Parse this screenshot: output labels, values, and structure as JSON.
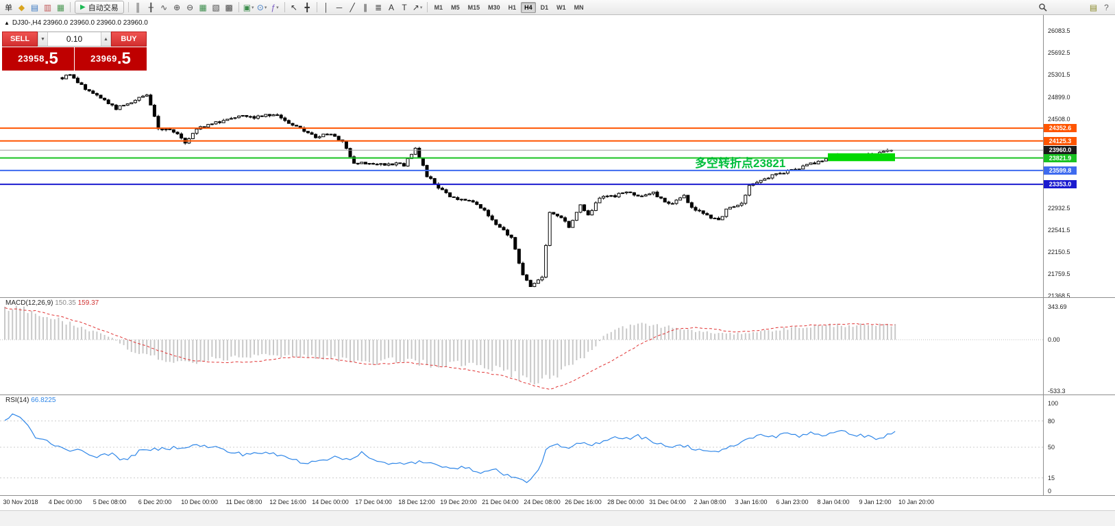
{
  "toolbar": {
    "new_order": {
      "name": "new-order-button",
      "label": "单"
    },
    "left_icons": [
      {
        "name": "history-center-icon",
        "glyph": "◆",
        "color": "#D9A41E"
      },
      {
        "name": "market-watch-icon",
        "glyph": "▤",
        "color": "#3E7BC4"
      },
      {
        "name": "data-window-icon",
        "glyph": "▥",
        "color": "#C25B5B"
      },
      {
        "name": "navigator-icon",
        "glyph": "▦",
        "color": "#4E9A57"
      }
    ],
    "autotrade": {
      "name": "autotrade-button",
      "label": "自动交易"
    },
    "chart_icons": [
      {
        "name": "bar-chart-icon",
        "glyph": "║",
        "color": "#4a4a4a"
      },
      {
        "name": "candlestick-icon",
        "glyph": "╂",
        "color": "#4a4a4a"
      },
      {
        "name": "line-chart-icon",
        "glyph": "∿",
        "color": "#4a4a4a"
      },
      {
        "name": "zoom-in-icon",
        "glyph": "⊕",
        "color": "#4a4a4a"
      },
      {
        "name": "zoom-out-icon",
        "glyph": "⊖",
        "color": "#4a4a4a"
      },
      {
        "name": "grid-icon",
        "glyph": "▦",
        "color": "#3E8E4E"
      },
      {
        "name": "cascade-windows-icon",
        "glyph": "▧",
        "color": "#4a4a4a"
      },
      {
        "name": "tile-windows-icon",
        "glyph": "▩",
        "color": "#4a4a4a"
      }
    ],
    "dropdown_icons": [
      {
        "name": "new-chart-button",
        "glyph": "▣",
        "color": "#3E8E4E",
        "caret": true
      },
      {
        "name": "periods-button",
        "glyph": "⊙",
        "color": "#3E7BC4",
        "caret": true
      },
      {
        "name": "indicators-button",
        "glyph": "ƒ",
        "color": "#7A5CC4",
        "caret": true
      }
    ],
    "cursor_icons": [
      {
        "name": "cursor-icon",
        "glyph": "↖",
        "color": "#333333"
      },
      {
        "name": "crosshair-icon",
        "glyph": "╋",
        "color": "#333333"
      }
    ],
    "draw_icons": [
      {
        "name": "vertical-line-tool",
        "glyph": "│",
        "color": "#333333"
      },
      {
        "name": "horizontal-line-tool",
        "glyph": "─",
        "color": "#333333"
      },
      {
        "name": "trendline-tool",
        "glyph": "╱",
        "color": "#333333"
      },
      {
        "name": "channel-tool",
        "glyph": "∥",
        "color": "#333333"
      },
      {
        "name": "fibonacci-tool",
        "glyph": "≣",
        "color": "#333333"
      },
      {
        "name": "text-tool",
        "glyph": "A",
        "color": "#333333"
      },
      {
        "name": "label-tool",
        "glyph": "T",
        "color": "#333333"
      },
      {
        "name": "arrows-tool",
        "glyph": "↗",
        "color": "#333333",
        "caret": true
      }
    ],
    "timeframes": [
      "M1",
      "M5",
      "M15",
      "M30",
      "H1",
      "H4",
      "D1",
      "W1",
      "MN"
    ],
    "active_timeframe": "H4",
    "right_icons": [
      {
        "name": "search-icon",
        "type": "magnifier"
      },
      {
        "name": "window-list-icon",
        "glyph": "▤",
        "color": "#8a8a2a"
      },
      {
        "name": "help-icon",
        "glyph": "?",
        "color": "#666666"
      }
    ]
  },
  "chart": {
    "title": "DJ30-,H4 23960.0 23960.0 23960.0 23960.0",
    "one_click": {
      "sell_label": "SELL",
      "buy_label": "BUY",
      "lot_value": "0.10",
      "sell_price_main": "23958",
      "sell_price_frac": ".5",
      "buy_price_main": "23969",
      "buy_price_frac": ".5"
    },
    "annotation": {
      "text": "多空转折点23821",
      "color": "#00BE3C"
    },
    "levels": [
      {
        "price": 24352.6,
        "label": "24352.6",
        "color": "#FF5500",
        "width": 2
      },
      {
        "price": 24125.3,
        "label": "24125.3",
        "color": "#FF5500",
        "width": 2
      },
      {
        "price": 23960.0,
        "label": "23960.0",
        "color": "#999999",
        "width": 1,
        "style": "current"
      },
      {
        "price": 23821.9,
        "label": "23821.9",
        "color": "#19C322",
        "width": 2
      },
      {
        "price": 23599.8,
        "label": "23599.8",
        "color": "#3E6BEF",
        "width": 2
      },
      {
        "price": 23353.0,
        "label": "23353.0",
        "color": "#1A1ACF",
        "width": 2
      }
    ],
    "price_axis_ticks": [
      "26083.5",
      "25692.5",
      "25301.5",
      "24899.0",
      "24508.0",
      "22932.5",
      "22541.5",
      "22150.5",
      "21759.5",
      "21368.5"
    ],
    "highlight_rect": {
      "color": "#00D800",
      "j_start": 215,
      "j_end": 232.5,
      "price_top": 23905,
      "price_bottom": 23765
    }
  },
  "chart_data": {
    "type": "candlestick",
    "symbol": "DJ30-",
    "period": "H4",
    "ohlc_current": {
      "open": "23960.0",
      "high": "23960.0",
      "low": "23960.0",
      "close": "23960.0"
    },
    "close_anchors": [
      [
        15,
        25250
      ],
      [
        17,
        25290
      ],
      [
        22,
        25000
      ],
      [
        26,
        24850
      ],
      [
        29,
        24700
      ],
      [
        34,
        24850
      ],
      [
        37,
        24950
      ],
      [
        40,
        24350
      ],
      [
        44,
        24300
      ],
      [
        47,
        24100
      ],
      [
        50,
        24350
      ],
      [
        55,
        24450
      ],
      [
        58,
        24520
      ],
      [
        62,
        24600
      ],
      [
        65,
        24550
      ],
      [
        70,
        24600
      ],
      [
        74,
        24450
      ],
      [
        78,
        24300
      ],
      [
        81,
        24200
      ],
      [
        85,
        24250
      ],
      [
        88,
        24100
      ],
      [
        91,
        23750
      ],
      [
        96,
        23700
      ],
      [
        100,
        23720
      ],
      [
        104,
        23700
      ],
      [
        107,
        24000
      ],
      [
        110,
        23500
      ],
      [
        113,
        23300
      ],
      [
        117,
        23100
      ],
      [
        121,
        23050
      ],
      [
        125,
        22900
      ],
      [
        128,
        22650
      ],
      [
        132,
        22400
      ],
      [
        135,
        21750
      ],
      [
        137,
        21550
      ],
      [
        140,
        21700
      ],
      [
        142,
        22850
      ],
      [
        145,
        22750
      ],
      [
        147,
        22600
      ],
      [
        150,
        23000
      ],
      [
        152,
        22800
      ],
      [
        155,
        23100
      ],
      [
        159,
        23150
      ],
      [
        162,
        23200
      ],
      [
        166,
        23150
      ],
      [
        169,
        23200
      ],
      [
        173,
        23000
      ],
      [
        177,
        23150
      ],
      [
        179,
        22950
      ],
      [
        183,
        22800
      ],
      [
        186,
        22700
      ],
      [
        188,
        22900
      ],
      [
        192,
        23000
      ],
      [
        194,
        23350
      ],
      [
        198,
        23450
      ],
      [
        202,
        23550
      ],
      [
        205,
        23600
      ],
      [
        209,
        23700
      ],
      [
        212,
        23750
      ],
      [
        216,
        23850
      ],
      [
        219,
        23880
      ],
      [
        223,
        23850
      ],
      [
        227,
        23880
      ],
      [
        231,
        23960
      ]
    ],
    "macd": {
      "label": "MACD(12,26,9)",
      "value_main": "150.35",
      "value_signal": "159.37",
      "ticks": [
        "343.69",
        "0.00",
        "-533.3"
      ],
      "hist_anchors": [
        [
          0,
          340
        ],
        [
          5,
          310
        ],
        [
          12,
          230
        ],
        [
          20,
          130
        ],
        [
          28,
          20
        ],
        [
          33,
          -120
        ],
        [
          40,
          -200
        ],
        [
          48,
          -260
        ],
        [
          55,
          -200
        ],
        [
          65,
          -180
        ],
        [
          75,
          -160
        ],
        [
          85,
          -200
        ],
        [
          95,
          -240
        ],
        [
          105,
          -200
        ],
        [
          110,
          -260
        ],
        [
          120,
          -240
        ],
        [
          127,
          -300
        ],
        [
          133,
          -380
        ],
        [
          138,
          -460
        ],
        [
          142,
          -400
        ],
        [
          148,
          -250
        ],
        [
          153,
          -120
        ],
        [
          156,
          40
        ],
        [
          160,
          120
        ],
        [
          165,
          160
        ],
        [
          170,
          150
        ],
        [
          175,
          120
        ],
        [
          180,
          90
        ],
        [
          185,
          70
        ],
        [
          190,
          60
        ],
        [
          195,
          80
        ],
        [
          200,
          100
        ],
        [
          205,
          120
        ],
        [
          210,
          140
        ],
        [
          215,
          150
        ],
        [
          220,
          155
        ],
        [
          225,
          145
        ],
        [
          232,
          150
        ]
      ],
      "signal_anchors": [
        [
          0,
          330
        ],
        [
          8,
          300
        ],
        [
          15,
          240
        ],
        [
          22,
          150
        ],
        [
          28,
          60
        ],
        [
          35,
          -40
        ],
        [
          42,
          -140
        ],
        [
          48,
          -210
        ],
        [
          55,
          -240
        ],
        [
          65,
          -230
        ],
        [
          75,
          -180
        ],
        [
          85,
          -200
        ],
        [
          95,
          -260
        ],
        [
          105,
          -240
        ],
        [
          110,
          -260
        ],
        [
          120,
          -310
        ],
        [
          130,
          -380
        ],
        [
          138,
          -480
        ],
        [
          142,
          -520
        ],
        [
          147,
          -450
        ],
        [
          153,
          -330
        ],
        [
          160,
          -180
        ],
        [
          165,
          -60
        ],
        [
          170,
          40
        ],
        [
          175,
          110
        ],
        [
          180,
          130
        ],
        [
          185,
          110
        ],
        [
          190,
          80
        ],
        [
          195,
          90
        ],
        [
          200,
          120
        ],
        [
          205,
          140
        ],
        [
          210,
          150
        ],
        [
          216,
          160
        ],
        [
          222,
          165
        ],
        [
          228,
          158
        ],
        [
          232,
          155
        ]
      ]
    },
    "rsi": {
      "label": "RSI(14)",
      "value": "66.8225",
      "ticks": [
        "100",
        "80",
        "50",
        "15",
        "0"
      ],
      "anchors": [
        [
          0,
          80
        ],
        [
          2,
          88
        ],
        [
          5,
          80
        ],
        [
          8,
          62
        ],
        [
          12,
          55
        ],
        [
          16,
          48
        ],
        [
          20,
          45
        ],
        [
          24,
          40
        ],
        [
          28,
          42
        ],
        [
          31,
          35
        ],
        [
          35,
          45
        ],
        [
          40,
          48
        ],
        [
          45,
          50
        ],
        [
          50,
          52
        ],
        [
          55,
          50
        ],
        [
          58,
          45
        ],
        [
          62,
          42
        ],
        [
          66,
          44
        ],
        [
          70,
          42
        ],
        [
          74,
          38
        ],
        [
          78,
          32
        ],
        [
          82,
          36
        ],
        [
          86,
          38
        ],
        [
          90,
          36
        ],
        [
          93,
          45
        ],
        [
          96,
          35
        ],
        [
          100,
          30
        ],
        [
          104,
          32
        ],
        [
          108,
          33
        ],
        [
          112,
          30
        ],
        [
          116,
          28
        ],
        [
          120,
          26
        ],
        [
          124,
          22
        ],
        [
          128,
          24
        ],
        [
          131,
          18
        ],
        [
          134,
          13
        ],
        [
          136,
          11
        ],
        [
          139,
          22
        ],
        [
          141,
          48
        ],
        [
          144,
          52
        ],
        [
          147,
          48
        ],
        [
          150,
          55
        ],
        [
          153,
          52
        ],
        [
          156,
          58
        ],
        [
          159,
          62
        ],
        [
          162,
          60
        ],
        [
          165,
          63
        ],
        [
          168,
          58
        ],
        [
          171,
          54
        ],
        [
          174,
          50
        ],
        [
          177,
          52
        ],
        [
          180,
          48
        ],
        [
          183,
          46
        ],
        [
          186,
          44
        ],
        [
          189,
          50
        ],
        [
          192,
          56
        ],
        [
          195,
          62
        ],
        [
          198,
          64
        ],
        [
          201,
          62
        ],
        [
          204,
          66
        ],
        [
          207,
          63
        ],
        [
          210,
          67
        ],
        [
          213,
          64
        ],
        [
          216,
          66
        ],
        [
          219,
          68
        ],
        [
          222,
          64
        ],
        [
          225,
          62
        ],
        [
          228,
          60
        ],
        [
          232,
          67
        ]
      ]
    },
    "time_labels": [
      [
        "30 Nov 2018",
        30
      ],
      [
        "4 Dec 00:00",
        95
      ],
      [
        "5 Dec 08:00",
        160
      ],
      [
        "6 Dec 20:00",
        226
      ],
      [
        "10 Dec 00:00",
        291
      ],
      [
        "11 Dec 08:00",
        356
      ],
      [
        "12 Dec 16:00",
        420
      ],
      [
        "14 Dec 00:00",
        482
      ],
      [
        "17 Dec 04:00",
        545
      ],
      [
        "18 Dec 12:00",
        608
      ],
      [
        "19 Dec 20:00",
        669
      ],
      [
        "21 Dec 04:00",
        730
      ],
      [
        "24 Dec 08:00",
        791
      ],
      [
        "26 Dec 16:00",
        851
      ],
      [
        "28 Dec 00:00",
        913
      ],
      [
        "31 Dec 04:00",
        974
      ],
      [
        "2 Jan 08:00",
        1036
      ],
      [
        "3 Jan 16:00",
        1096
      ],
      [
        "6 Jan 23:00",
        1156
      ],
      [
        "8 Jan 04:00",
        1216
      ],
      [
        "9 Jan 12:00",
        1277
      ],
      [
        "10 Jan 20:00",
        1337
      ]
    ]
  },
  "colors": {
    "candle_up_fill": "#ffffff",
    "candle_down_fill": "#000000",
    "candle_stroke": "#000000",
    "macd_histogram": "#c8c8c8",
    "macd_signal": "#e03131",
    "rsi_line": "#2e86e8",
    "buy_sell_red": "#d82c2c",
    "price_tile_red": "#bf0000",
    "accent_green": "#00BE3C"
  }
}
